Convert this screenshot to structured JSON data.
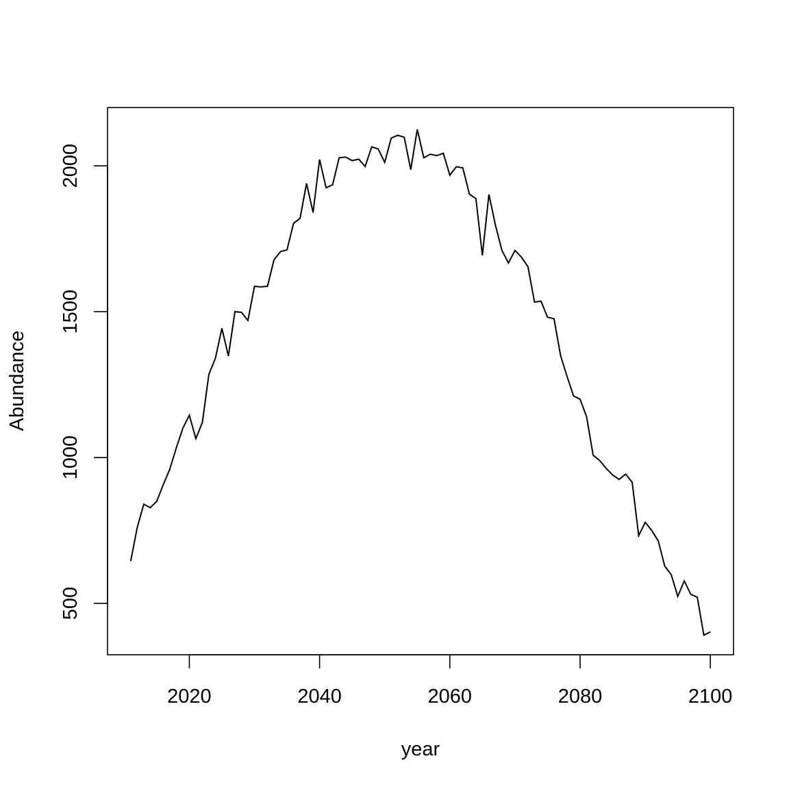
{
  "chart_data": {
    "type": "line",
    "title": "",
    "xlabel": "year",
    "ylabel": "Abundance",
    "xlim": [
      2007.44,
      2103.56
    ],
    "ylim": [
      323.8,
      2200
    ],
    "x_ticks": [
      2020,
      2040,
      2060,
      2080,
      2100
    ],
    "y_ticks": [
      500,
      1000,
      1500,
      2000
    ],
    "x_tick_labels": [
      "2020",
      "2040",
      "2060",
      "2080",
      "2100"
    ],
    "y_tick_labels": [
      "500",
      "1000",
      "1500",
      "2000"
    ],
    "grid": false,
    "legend": "none",
    "line_color": "#000000",
    "series": [
      {
        "x": [
          2011,
          2012,
          2013,
          2014,
          2015,
          2016,
          2017,
          2018,
          2019,
          2020,
          2021,
          2022,
          2023,
          2024,
          2025,
          2026,
          2027,
          2028,
          2029,
          2030,
          2031,
          2032,
          2033,
          2034,
          2035,
          2036,
          2037,
          2038,
          2039,
          2040,
          2041,
          2042,
          2043,
          2044,
          2045,
          2046,
          2047,
          2048,
          2049,
          2050,
          2051,
          2052,
          2053,
          2054,
          2055,
          2056,
          2057,
          2058,
          2059,
          2060,
          2061,
          2062,
          2063,
          2064,
          2065,
          2066,
          2067,
          2068,
          2069,
          2070,
          2071,
          2072,
          2073,
          2074,
          2075,
          2076,
          2077,
          2078,
          2079,
          2080,
          2081,
          2082,
          2083,
          2084,
          2085,
          2086,
          2087,
          2088,
          2089,
          2090,
          2091,
          2092,
          2093,
          2094,
          2095,
          2096,
          2097,
          2098,
          2099,
          2100
        ],
        "y": [
          645,
          760,
          840,
          828,
          850,
          907,
          960,
          1033,
          1100,
          1145,
          1065,
          1120,
          1285,
          1340,
          1443,
          1348,
          1500,
          1498,
          1470,
          1587,
          1585,
          1587,
          1678,
          1706,
          1712,
          1803,
          1820,
          1940,
          1840,
          2022,
          1925,
          1935,
          2028,
          2030,
          2018,
          2023,
          1998,
          2065,
          2058,
          2012,
          2095,
          2105,
          2098,
          1987,
          2125,
          2028,
          2040,
          2035,
          2043,
          1968,
          1997,
          1993,
          1903,
          1888,
          1693,
          1902,
          1797,
          1710,
          1667,
          1710,
          1687,
          1654,
          1533,
          1536,
          1481,
          1476,
          1350,
          1278,
          1211,
          1200,
          1140,
          1008,
          990,
          963,
          940,
          925,
          943,
          915,
          732,
          778,
          750,
          714,
          628,
          598,
          524,
          577,
          531,
          521,
          391,
          402
        ]
      }
    ]
  }
}
